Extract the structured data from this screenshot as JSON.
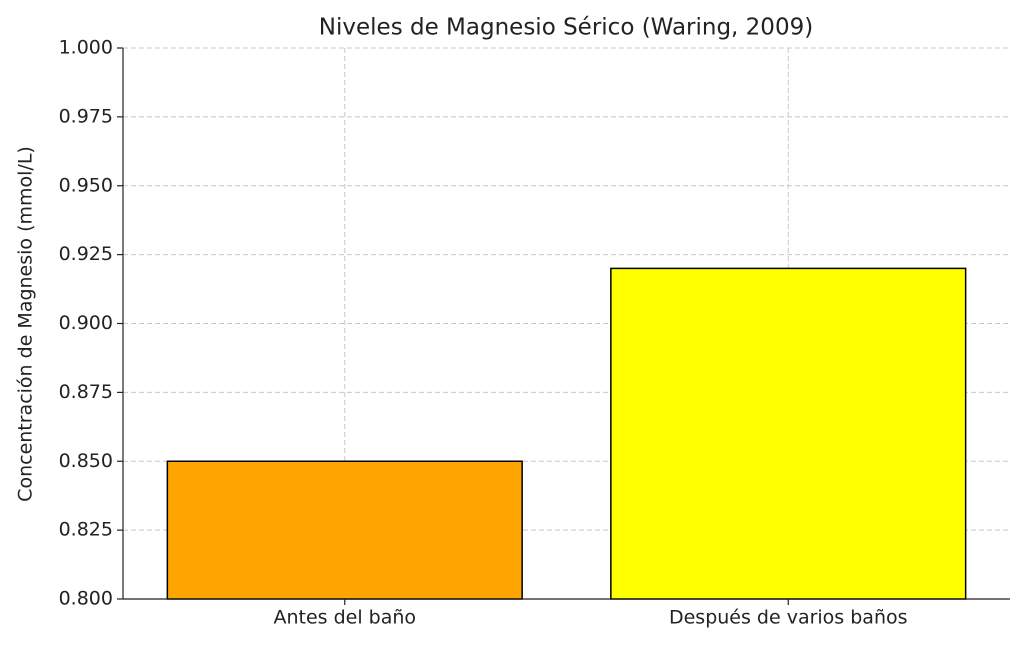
{
  "chart_data": {
    "type": "bar",
    "title": "Niveles de Magnesio Sérico (Waring, 2009)",
    "ylabel": "Concentración de Magnesio (mmol/L)",
    "categories": [
      "Antes del baño",
      "Después de varios baños"
    ],
    "values": [
      0.85,
      0.92
    ],
    "colors": [
      "#ffa500",
      "#ffff00"
    ],
    "edgecolor": "#000000",
    "ylim": [
      0.8,
      1.0
    ],
    "yticks": [
      {
        "value": 0.8,
        "label": "0.800"
      },
      0.825,
      {
        "value": 0.85,
        "label": "0.850"
      },
      0.875,
      {
        "value": 0.9,
        "label": "0.900"
      },
      0.925,
      {
        "value": 0.95,
        "label": "0.950"
      },
      0.975,
      {
        "value": 1.0,
        "label": "1.000"
      }
    ],
    "grid": true
  }
}
